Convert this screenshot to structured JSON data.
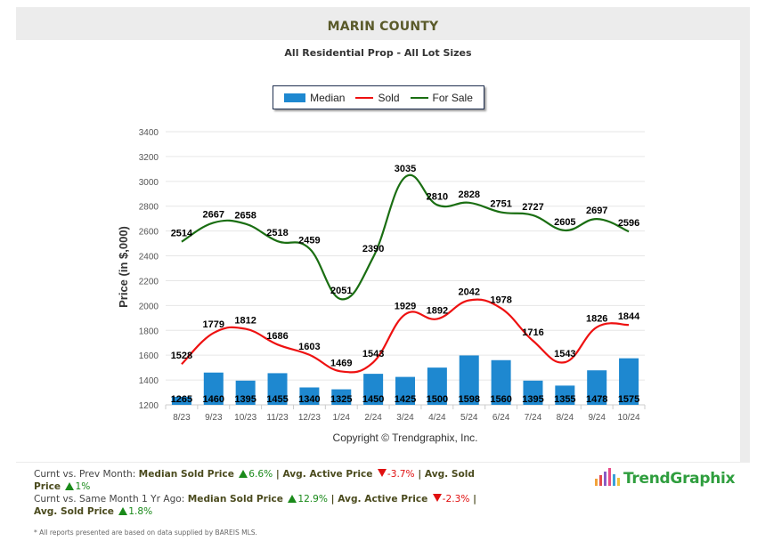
{
  "header": {
    "title": "MARIN COUNTY",
    "subtitle": "All Residential Prop - All Lot Sizes"
  },
  "legend": [
    {
      "label": "Median",
      "kind": "bar",
      "color": "#1e88d0"
    },
    {
      "label": "Sold",
      "kind": "line",
      "color": "#ee1111"
    },
    {
      "label": "For Sale",
      "kind": "line",
      "color": "#1a6e12"
    }
  ],
  "copyright": "Copyright © Trendgraphix, Inc.",
  "chart_data": {
    "type": "bar+line",
    "title": "MARIN COUNTY",
    "subtitle": "All Residential Prop - All Lot Sizes",
    "xlabel": "",
    "ylabel": "Price (in $,000)",
    "ylim": [
      1200,
      3400
    ],
    "yticks": [
      1200,
      1400,
      1600,
      1800,
      2000,
      2200,
      2400,
      2600,
      2800,
      3000,
      3200,
      3400
    ],
    "grid": true,
    "legend_position": "top-center",
    "categories": [
      "8/23",
      "9/23",
      "10/23",
      "11/23",
      "12/23",
      "1/24",
      "2/24",
      "3/24",
      "4/24",
      "5/24",
      "6/24",
      "7/24",
      "8/24",
      "9/24",
      "10/24"
    ],
    "series": [
      {
        "name": "Median",
        "type": "bar",
        "color": "#1e88d0",
        "values": [
          1265,
          1460,
          1395,
          1455,
          1340,
          1325,
          1450,
          1425,
          1500,
          1598,
          1560,
          1395,
          1355,
          1478,
          1575
        ]
      },
      {
        "name": "Sold",
        "type": "line",
        "color": "#ee1111",
        "values": [
          1528,
          1779,
          1812,
          1686,
          1603,
          1469,
          1543,
          1929,
          1892,
          2042,
          1978,
          1716,
          1543,
          1826,
          1844
        ]
      },
      {
        "name": "For Sale",
        "type": "line",
        "color": "#1a6e12",
        "values": [
          2514,
          2667,
          2658,
          2518,
          2459,
          2051,
          2390,
          3035,
          2810,
          2828,
          2751,
          2727,
          2605,
          2697,
          2596
        ]
      }
    ]
  },
  "stats": {
    "line1_prefix": "Curnt vs. Prev Month: ",
    "line1": [
      {
        "label": "Median Sold Price",
        "dir": "up",
        "value": "6.6%"
      },
      {
        "label": "Avg. Active Price",
        "dir": "down",
        "value": "-3.7%"
      },
      {
        "label": "Avg. Sold Price",
        "dir": "up",
        "value": "1%"
      }
    ],
    "line2_prefix": "Curnt vs. Same Month 1 Yr Ago: ",
    "line2": [
      {
        "label": "Median Sold Price",
        "dir": "up",
        "value": "12.9%"
      },
      {
        "label": "Avg. Active Price",
        "dir": "down",
        "value": "-2.3%"
      },
      {
        "label": "Avg. Sold Price",
        "dir": "up",
        "value": "1.8%"
      }
    ],
    "separator": " | "
  },
  "footnote": "* All reports presented are based on data supplied by BAREIS MLS.",
  "logo": {
    "text": "TrendGraphix",
    "icon": "bar-chart-logo-icon"
  }
}
